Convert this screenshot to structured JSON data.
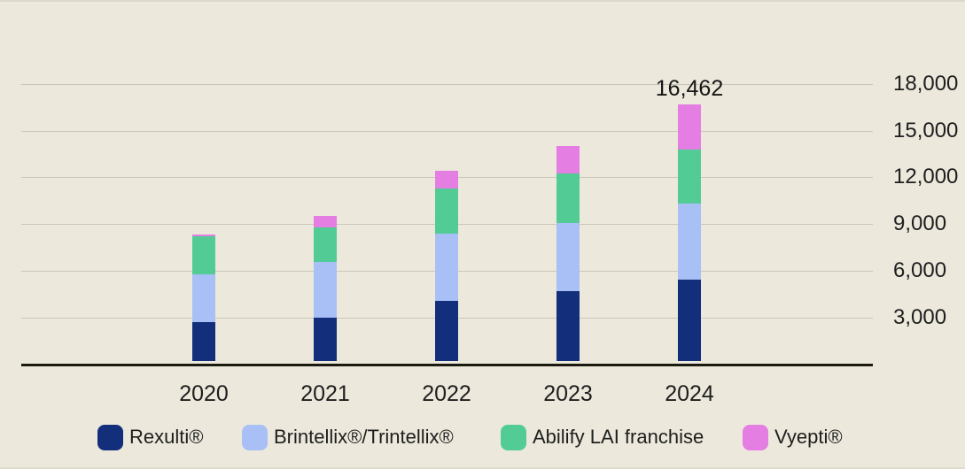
{
  "chart_data": {
    "type": "bar",
    "stacked": true,
    "title": "",
    "categories": [
      "2020",
      "2021",
      "2022",
      "2023",
      "2024"
    ],
    "series": [
      {
        "name": "Rexulti®",
        "color": "#132f7c",
        "values": [
          2500,
          2780,
          3870,
          4490,
          5200
        ]
      },
      {
        "name": "Brintellix®/Trintellix®",
        "color": "#a8c0f6",
        "values": [
          3070,
          3600,
          4270,
          4380,
          4900
        ]
      },
      {
        "name": "Abilify LAI franchise",
        "color": "#53cb95",
        "values": [
          2420,
          2210,
          2920,
          3170,
          3480
        ]
      },
      {
        "name": "Vyepti®",
        "color": "#e57ee3",
        "values": [
          100,
          710,
          1130,
          1730,
          2882
        ]
      }
    ],
    "totals": [
      8090,
      9300,
      12190,
      13770,
      16462
    ],
    "annotations": [
      {
        "category": "2024",
        "text": "16,462"
      }
    ],
    "ylim": [
      0,
      18000
    ],
    "yticks": [
      3000,
      6000,
      9000,
      12000,
      15000,
      18000
    ],
    "ytick_labels": [
      "3,000",
      "6,000",
      "9,000",
      "12,000",
      "15,000",
      "18,000"
    ],
    "grid": "horizontal",
    "y_axis_side": "right",
    "legend_position": "bottom"
  },
  "colors": {
    "background": "#ece8dc",
    "gridline": "#c9c5b9",
    "axis": "#1b1a10",
    "text": "#1e1e1e"
  }
}
